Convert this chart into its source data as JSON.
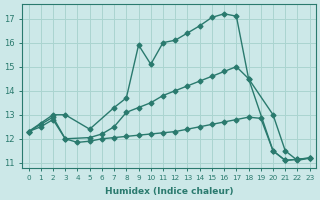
{
  "xlabel": "Humidex (Indice chaleur)",
  "background_color": "#cce8e8",
  "grid_color": "#aad4d0",
  "line_color": "#2a7a6e",
  "xlim": [
    -0.5,
    23.5
  ],
  "ylim": [
    10.8,
    17.6
  ],
  "xticks": [
    0,
    1,
    2,
    3,
    4,
    5,
    6,
    7,
    8,
    9,
    10,
    11,
    12,
    13,
    14,
    15,
    16,
    17,
    18,
    19,
    20,
    21,
    22,
    23
  ],
  "yticks": [
    11,
    12,
    13,
    14,
    15,
    16,
    17
  ],
  "line_max_x": [
    0,
    2,
    3,
    5,
    7,
    8,
    9,
    10,
    11,
    12,
    13,
    14,
    15,
    16,
    17,
    18,
    20,
    21,
    22,
    23
  ],
  "line_max_y": [
    12.3,
    13.0,
    13.0,
    12.4,
    13.3,
    13.7,
    15.9,
    15.1,
    16.0,
    16.1,
    16.4,
    16.7,
    17.05,
    17.2,
    17.1,
    14.5,
    11.5,
    11.1,
    11.15,
    11.2
  ],
  "line_mean_x": [
    0,
    1,
    2,
    3,
    5,
    6,
    7,
    8,
    9,
    10,
    11,
    12,
    13,
    14,
    15,
    16,
    17,
    18,
    20,
    21,
    22,
    23
  ],
  "line_mean_y": [
    12.3,
    12.6,
    12.9,
    12.0,
    12.05,
    12.2,
    12.5,
    13.1,
    13.3,
    13.5,
    13.8,
    14.0,
    14.2,
    14.4,
    14.6,
    14.8,
    15.0,
    14.5,
    13.0,
    11.5,
    11.1,
    11.2
  ],
  "line_min_x": [
    0,
    1,
    2,
    3,
    4,
    5,
    6,
    7,
    8,
    9,
    10,
    11,
    12,
    13,
    14,
    15,
    16,
    17,
    18,
    19,
    20,
    21,
    22,
    23
  ],
  "line_min_y": [
    12.3,
    12.5,
    12.8,
    12.0,
    11.85,
    11.9,
    12.0,
    12.05,
    12.1,
    12.15,
    12.2,
    12.25,
    12.3,
    12.4,
    12.5,
    12.6,
    12.7,
    12.8,
    12.9,
    12.85,
    11.5,
    11.1,
    11.15,
    11.2
  ],
  "marker": "D",
  "markersize": 2.5,
  "linewidth": 1.0
}
